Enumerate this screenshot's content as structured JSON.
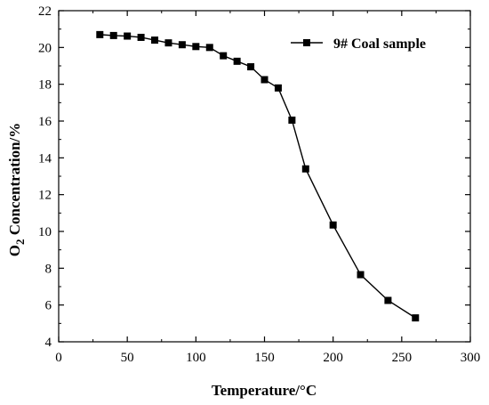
{
  "chart_data": {
    "type": "line",
    "title": "",
    "xlabel": "Temperature/°C",
    "ylabel_main": "O",
    "ylabel_sub": "2",
    "ylabel_rest": " Concentration/%",
    "xlim": [
      0,
      300
    ],
    "ylim": [
      4,
      22
    ],
    "x_ticks": [
      0,
      50,
      100,
      150,
      200,
      250,
      300
    ],
    "y_ticks": [
      4,
      6,
      8,
      10,
      12,
      14,
      16,
      18,
      20,
      22
    ],
    "grid": false,
    "legend_position": "top-right",
    "series": [
      {
        "name": "9#  Coal sample",
        "marker": "square",
        "color": "#000000",
        "x": [
          30,
          40,
          50,
          60,
          70,
          80,
          90,
          100,
          110,
          120,
          130,
          140,
          150,
          160,
          170,
          180,
          200,
          220,
          240,
          260
        ],
        "y": [
          20.7,
          20.65,
          20.62,
          20.55,
          20.4,
          20.25,
          20.15,
          20.05,
          20.0,
          19.55,
          19.25,
          18.95,
          18.25,
          17.8,
          16.05,
          13.4,
          10.35,
          7.65,
          6.25,
          5.3
        ]
      }
    ]
  }
}
